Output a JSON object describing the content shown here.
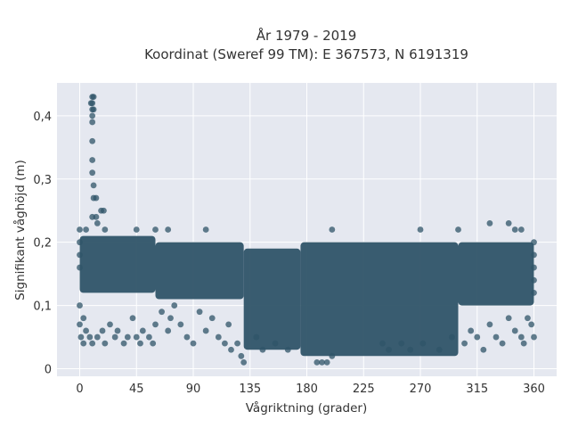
{
  "chart_data": {
    "type": "scatter",
    "title": "År 1979 - 2019",
    "subtitle": "Koordinat (Sweref 99 TM): E 367573, N 6191319",
    "xlabel": "Vågriktning (grader)",
    "ylabel": "Signifikant våghöjd (m)",
    "xlim": [
      -18,
      378
    ],
    "ylim": [
      -0.012,
      0.452
    ],
    "x_ticks": [
      0,
      45,
      90,
      135,
      180,
      225,
      270,
      315,
      360
    ],
    "x_tick_labels": [
      "0",
      "45",
      "90",
      "135",
      "180",
      "225",
      "270",
      "315",
      "360"
    ],
    "y_ticks": [
      0,
      0.1,
      0.2,
      0.3,
      0.4
    ],
    "y_tick_labels": [
      "0",
      "0,1",
      "0,2",
      "0,3",
      "0,4"
    ],
    "grid": true,
    "legend": "none",
    "colors": {
      "marker": "#2f5468",
      "plot_bg": "#e5e8f0",
      "grid": "#ffffff",
      "text": "#333333"
    },
    "dense_bands": [
      {
        "x_range": [
          0,
          60
        ],
        "y_range": [
          0.12,
          0.21
        ]
      },
      {
        "x_range": [
          60,
          130
        ],
        "y_range": [
          0.11,
          0.2
        ]
      },
      {
        "x_range": [
          130,
          175
        ],
        "y_range": [
          0.03,
          0.19
        ]
      },
      {
        "x_range": [
          175,
          300
        ],
        "y_range": [
          0.02,
          0.2
        ]
      },
      {
        "x_range": [
          300,
          360
        ],
        "y_range": [
          0.1,
          0.2
        ]
      }
    ],
    "points": [
      [
        10,
        0.43
      ],
      [
        10,
        0.42
      ],
      [
        10,
        0.41
      ],
      [
        10,
        0.4
      ],
      [
        10,
        0.39
      ],
      [
        11,
        0.43
      ],
      [
        9,
        0.42
      ],
      [
        11,
        0.41
      ],
      [
        10,
        0.36
      ],
      [
        10,
        0.33
      ],
      [
        10,
        0.31
      ],
      [
        11,
        0.29
      ],
      [
        13,
        0.27
      ],
      [
        11,
        0.27
      ],
      [
        17,
        0.25
      ],
      [
        19,
        0.25
      ],
      [
        10,
        0.24
      ],
      [
        13,
        0.24
      ],
      [
        14,
        0.23
      ],
      [
        0,
        0.22
      ],
      [
        5,
        0.22
      ],
      [
        20,
        0.22
      ],
      [
        45,
        0.22
      ],
      [
        60,
        0.22
      ],
      [
        70,
        0.22
      ],
      [
        100,
        0.22
      ],
      [
        200,
        0.22
      ],
      [
        270,
        0.22
      ],
      [
        300,
        0.22
      ],
      [
        325,
        0.23
      ],
      [
        340,
        0.23
      ],
      [
        345,
        0.22
      ],
      [
        350,
        0.22
      ],
      [
        0,
        0.1
      ],
      [
        0,
        0.07
      ],
      [
        1,
        0.05
      ],
      [
        3,
        0.04
      ],
      [
        3,
        0.08
      ],
      [
        5,
        0.06
      ],
      [
        8,
        0.05
      ],
      [
        10,
        0.04
      ],
      [
        14,
        0.05
      ],
      [
        18,
        0.06
      ],
      [
        20,
        0.04
      ],
      [
        24,
        0.07
      ],
      [
        28,
        0.05
      ],
      [
        30,
        0.06
      ],
      [
        35,
        0.04
      ],
      [
        38,
        0.05
      ],
      [
        42,
        0.08
      ],
      [
        45,
        0.05
      ],
      [
        48,
        0.04
      ],
      [
        50,
        0.06
      ],
      [
        55,
        0.05
      ],
      [
        58,
        0.04
      ],
      [
        60,
        0.07
      ],
      [
        65,
        0.09
      ],
      [
        70,
        0.06
      ],
      [
        72,
        0.08
      ],
      [
        75,
        0.1
      ],
      [
        80,
        0.07
      ],
      [
        85,
        0.05
      ],
      [
        90,
        0.04
      ],
      [
        95,
        0.09
      ],
      [
        100,
        0.06
      ],
      [
        105,
        0.08
      ],
      [
        110,
        0.05
      ],
      [
        115,
        0.04
      ],
      [
        118,
        0.07
      ],
      [
        120,
        0.03
      ],
      [
        125,
        0.04
      ],
      [
        128,
        0.02
      ],
      [
        130,
        0.01
      ],
      [
        140,
        0.05
      ],
      [
        145,
        0.03
      ],
      [
        155,
        0.04
      ],
      [
        165,
        0.03
      ],
      [
        240,
        0.04
      ],
      [
        245,
        0.03
      ],
      [
        255,
        0.04
      ],
      [
        262,
        0.03
      ],
      [
        272,
        0.04
      ],
      [
        285,
        0.03
      ],
      [
        295,
        0.05
      ],
      [
        305,
        0.04
      ],
      [
        310,
        0.06
      ],
      [
        315,
        0.05
      ],
      [
        320,
        0.03
      ],
      [
        325,
        0.07
      ],
      [
        330,
        0.05
      ],
      [
        335,
        0.04
      ],
      [
        340,
        0.08
      ],
      [
        345,
        0.06
      ],
      [
        350,
        0.05
      ],
      [
        352,
        0.04
      ],
      [
        355,
        0.08
      ],
      [
        358,
        0.07
      ],
      [
        360,
        0.05
      ],
      [
        188,
        0.01
      ],
      [
        192,
        0.01
      ],
      [
        196,
        0.01
      ],
      [
        200,
        0.02
      ],
      [
        0,
        0.16
      ],
      [
        0,
        0.18
      ],
      [
        0,
        0.2
      ],
      [
        360,
        0.2
      ],
      [
        360,
        0.18
      ],
      [
        360,
        0.16
      ],
      [
        360,
        0.14
      ],
      [
        360,
        0.12
      ]
    ]
  }
}
